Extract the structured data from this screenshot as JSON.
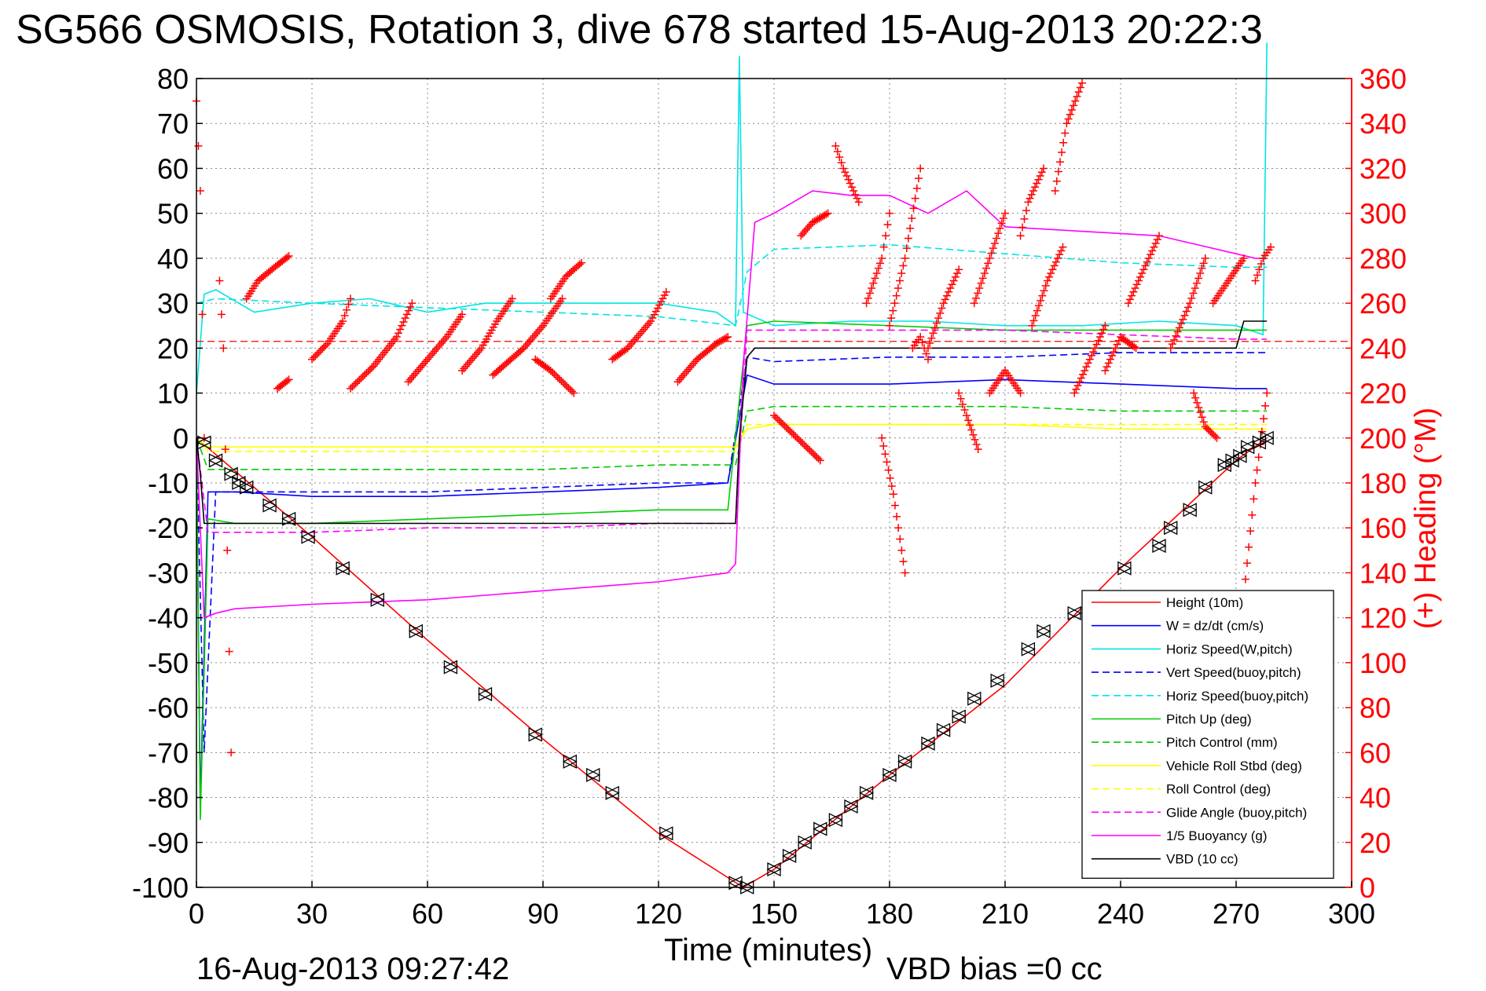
{
  "chart_data": {
    "type": "line",
    "title": "SG566 OSMOSIS, Rotation 3, dive 678 started 15-Aug-2013 20:22:3",
    "xlabel": "Time (minutes)",
    "ylabel": "",
    "y2label": "(+) Heading (°M)",
    "xlim": [
      0,
      300
    ],
    "ylim": [
      -100,
      80
    ],
    "y2lim": [
      0,
      360
    ],
    "xticks": [
      "0",
      "30",
      "60",
      "90",
      "120",
      "150",
      "180",
      "210",
      "240",
      "270",
      "300"
    ],
    "yticks": [
      "80",
      "70",
      "60",
      "50",
      "40",
      "30",
      "20",
      "10",
      "0",
      "-10",
      "-20",
      "-30",
      "-40",
      "-50",
      "-60",
      "-70",
      "-80",
      "-90",
      "-100"
    ],
    "y2ticks": [
      "360",
      "340",
      "320",
      "300",
      "280",
      "260",
      "240",
      "220",
      "200",
      "180",
      "160",
      "140",
      "120",
      "100",
      "80",
      "60",
      "40",
      "20",
      "0"
    ],
    "grid": true,
    "legend_position": "bottom-right",
    "annotation_date": "16-Aug-2013 09:27:42",
    "annotation_bias": "VBD bias =0 cc",
    "series": [
      {
        "name": "Height (10m)",
        "color": "#ff0000",
        "style": "solid",
        "x": [
          0,
          30,
          60,
          90,
          120,
          142,
          150,
          180,
          210,
          240,
          270,
          278
        ],
        "y": [
          0,
          -22,
          -45,
          -67,
          -88,
          -100,
          -96,
          -75,
          -55,
          -29,
          -5,
          0
        ]
      },
      {
        "name": "W = dz/dt (cm/s)",
        "color": "#0000ff",
        "style": "solid",
        "x": [
          0,
          1,
          3,
          10,
          30,
          60,
          90,
          120,
          138,
          143,
          150,
          180,
          210,
          240,
          270,
          278
        ],
        "y": [
          0,
          -82,
          -12,
          -12,
          -13,
          -13,
          -12,
          -11,
          -10,
          14,
          12,
          12,
          13,
          12,
          11,
          11
        ]
      },
      {
        "name": "Horiz Speed(W,pitch)",
        "color": "#00e5e5",
        "style": "solid",
        "x": [
          0,
          2,
          5,
          15,
          30,
          45,
          60,
          75,
          90,
          105,
          120,
          135,
          140,
          141,
          142,
          150,
          170,
          190,
          210,
          230,
          250,
          270,
          277,
          278
        ],
        "y": [
          10,
          32,
          33,
          28,
          30,
          31,
          28,
          30,
          30,
          30,
          30,
          28,
          25,
          85,
          28,
          25,
          26,
          26,
          25,
          25,
          26,
          25,
          23,
          88
        ]
      },
      {
        "name": "Vert Speed(buoy,pitch)",
        "color": "#0000ff",
        "style": "dashed",
        "x": [
          0,
          2,
          5,
          30,
          60,
          90,
          120,
          138,
          143,
          150,
          180,
          210,
          240,
          278
        ],
        "y": [
          0,
          -70,
          -12,
          -12,
          -12,
          -11,
          -10,
          -10,
          18,
          17,
          18,
          18,
          19,
          19
        ]
      },
      {
        "name": "Horiz Speed(buoy,pitch)",
        "color": "#00e5e5",
        "style": "dashed",
        "x": [
          0,
          5,
          30,
          60,
          90,
          120,
          140,
          143,
          150,
          180,
          210,
          240,
          270,
          278
        ],
        "y": [
          30,
          31,
          30,
          29,
          28,
          27,
          25,
          37,
          42,
          43,
          41,
          39,
          38,
          38
        ]
      },
      {
        "name": "Pitch Up (deg)",
        "color": "#00cc00",
        "style": "solid",
        "x": [
          0,
          1,
          3,
          10,
          30,
          60,
          90,
          120,
          138,
          143,
          150,
          180,
          210,
          240,
          270,
          278
        ],
        "y": [
          0,
          -85,
          -18,
          -19,
          -19,
          -18,
          -17,
          -16,
          -16,
          25,
          26,
          25,
          24,
          24,
          24,
          24
        ]
      },
      {
        "name": "Pitch Control (mm)",
        "color": "#00cc00",
        "style": "dashed",
        "x": [
          0,
          3,
          30,
          60,
          90,
          120,
          140,
          143,
          150,
          180,
          210,
          240,
          270,
          278
        ],
        "y": [
          0,
          -7,
          -7,
          -7,
          -7,
          -6,
          -6,
          6,
          7,
          7,
          7,
          6,
          6,
          6
        ]
      },
      {
        "name": "Vehicle Roll Stbd (deg)",
        "color": "#ffff00",
        "style": "solid",
        "x": [
          0,
          3,
          30,
          60,
          90,
          120,
          140,
          143,
          150,
          180,
          210,
          240,
          270,
          278
        ],
        "y": [
          0,
          -2,
          -2,
          -2,
          -2,
          -2,
          -2,
          2,
          3,
          3,
          3,
          2,
          2,
          2
        ]
      },
      {
        "name": "Roll Control (deg)",
        "color": "#ffff00",
        "style": "dashed",
        "x": [
          0,
          3,
          30,
          60,
          90,
          120,
          140,
          143,
          150,
          180,
          210,
          240,
          270,
          278
        ],
        "y": [
          0,
          -3,
          -3,
          -3,
          -3,
          -3,
          -3,
          3,
          3,
          3,
          3,
          3,
          3,
          3
        ]
      },
      {
        "name": "Glide Angle (buoy,pitch)",
        "color": "#ff00ff",
        "style": "dashed",
        "x": [
          0,
          3,
          30,
          60,
          90,
          120,
          140,
          143,
          150,
          180,
          210,
          240,
          270,
          278
        ],
        "y": [
          0,
          -21,
          -21,
          -20,
          -20,
          -19,
          -19,
          24,
          24,
          24,
          24,
          23,
          22,
          22
        ]
      },
      {
        "name": "1/5 Buoyancy (g)",
        "color": "#ff00ff",
        "style": "solid",
        "x": [
          0,
          2,
          5,
          10,
          30,
          60,
          90,
          120,
          138,
          140,
          142,
          145,
          150,
          160,
          170,
          180,
          190,
          200,
          210,
          230,
          250,
          270,
          275,
          278
        ],
        "y": [
          0,
          -40,
          -39,
          -38,
          -37,
          -36,
          -34,
          -32,
          -30,
          -28,
          16,
          48,
          50,
          55,
          54,
          54,
          50,
          55,
          47,
          46,
          45,
          41,
          40,
          40
        ]
      },
      {
        "name": "VBD (10 cc)",
        "color": "#000000",
        "style": "solid",
        "x": [
          0,
          1,
          2,
          30,
          60,
          90,
          120,
          140,
          141,
          143,
          145,
          150,
          180,
          210,
          240,
          270,
          272,
          278
        ],
        "y": [
          0,
          -8,
          -19,
          -19,
          -19,
          -19,
          -19,
          -19,
          0,
          18,
          20,
          20,
          20,
          20,
          20,
          20,
          26,
          26
        ]
      }
    ],
    "heading": {
      "name": "(+) Heading (°M)",
      "color": "#ff0000",
      "marker": "+",
      "axis": "right",
      "segments": [
        {
          "x": [
            0,
            1,
            2
          ],
          "y": [
            350,
            310,
            200
          ]
        },
        {
          "x": [
            6,
            7,
            8,
            9
          ],
          "y": [
            270,
            240,
            150,
            60
          ]
        },
        {
          "x": [
            13,
            16,
            21,
            24
          ],
          "y": [
            262,
            270,
            277,
            281
          ]
        },
        {
          "x": [
            21,
            24
          ],
          "y": [
            222,
            226
          ]
        },
        {
          "x": [
            30,
            34,
            38,
            40
          ],
          "y": [
            235,
            242,
            252,
            262
          ]
        },
        {
          "x": [
            40,
            46,
            52,
            56
          ],
          "y": [
            222,
            232,
            245,
            260
          ]
        },
        {
          "x": [
            55,
            60,
            65,
            69
          ],
          "y": [
            225,
            235,
            245,
            255
          ]
        },
        {
          "x": [
            69,
            74,
            78,
            82
          ],
          "y": [
            230,
            240,
            252,
            262
          ]
        },
        {
          "x": [
            77,
            85,
            90,
            95
          ],
          "y": [
            228,
            240,
            250,
            262
          ]
        },
        {
          "x": [
            92,
            96,
            100
          ],
          "y": [
            262,
            272,
            278
          ]
        },
        {
          "x": [
            88,
            92,
            98
          ],
          "y": [
            235,
            230,
            220
          ]
        },
        {
          "x": [
            108,
            112,
            118,
            122
          ],
          "y": [
            235,
            240,
            252,
            265
          ]
        },
        {
          "x": [
            125,
            130,
            135,
            138
          ],
          "y": [
            225,
            235,
            242,
            245
          ]
        },
        {
          "x": [
            150,
            156,
            162
          ],
          "y": [
            210,
            200,
            190
          ]
        },
        {
          "x": [
            157,
            160,
            164
          ],
          "y": [
            290,
            296,
            300
          ]
        },
        {
          "x": [
            166,
            168,
            172
          ],
          "y": [
            330,
            320,
            305
          ]
        },
        {
          "x": [
            174,
            178,
            180
          ],
          "y": [
            260,
            280,
            300
          ]
        },
        {
          "x": [
            178,
            181,
            184
          ],
          "y": [
            200,
            175,
            140
          ]
        },
        {
          "x": [
            180,
            184,
            188
          ],
          "y": [
            250,
            280,
            320
          ]
        },
        {
          "x": [
            186,
            188,
            190
          ],
          "y": [
            240,
            245,
            235
          ]
        },
        {
          "x": [
            190,
            194,
            198
          ],
          "y": [
            240,
            260,
            275
          ]
        },
        {
          "x": [
            198,
            200,
            203
          ],
          "y": [
            220,
            210,
            195
          ]
        },
        {
          "x": [
            202,
            206,
            210
          ],
          "y": [
            260,
            280,
            300
          ]
        },
        {
          "x": [
            206,
            210,
            214
          ],
          "y": [
            220,
            230,
            220
          ]
        },
        {
          "x": [
            214,
            216,
            220
          ],
          "y": [
            290,
            305,
            320
          ]
        },
        {
          "x": [
            217,
            221,
            225
          ],
          "y": [
            250,
            270,
            285
          ]
        },
        {
          "x": [
            223,
            226,
            230
          ],
          "y": [
            310,
            340,
            358
          ]
        },
        {
          "x": [
            228,
            232,
            236
          ],
          "y": [
            220,
            235,
            250
          ]
        },
        {
          "x": [
            236,
            240,
            244
          ],
          "y": [
            230,
            245,
            240
          ]
        },
        {
          "x": [
            242,
            246,
            250
          ],
          "y": [
            260,
            275,
            290
          ]
        },
        {
          "x": [
            253,
            258,
            262
          ],
          "y": [
            240,
            260,
            280
          ]
        },
        {
          "x": [
            259,
            262,
            265
          ],
          "y": [
            220,
            205,
            200
          ]
        },
        {
          "x": [
            264,
            268,
            272
          ],
          "y": [
            260,
            270,
            280
          ]
        },
        {
          "x": [
            272,
            275,
            278
          ],
          "y": [
            130,
            180,
            220
          ]
        },
        {
          "x": [
            275,
            277,
            279
          ],
          "y": [
            270,
            280,
            285
          ]
        }
      ],
      "reference": {
        "y": 243,
        "style": "dashed"
      }
    },
    "vbd_markers": {
      "marker": "triangle",
      "color": "#000000",
      "x": [
        2,
        5,
        9,
        11,
        13,
        19,
        24,
        29,
        38,
        47,
        57,
        66,
        75,
        88,
        97,
        103,
        108,
        122,
        140,
        143,
        150,
        154,
        158,
        162,
        166,
        170,
        174,
        180,
        184,
        190,
        194,
        198,
        202,
        208,
        216,
        220,
        228,
        241,
        250,
        253,
        258,
        262,
        267,
        269,
        271,
        273,
        276,
        278
      ],
      "y": [
        -1,
        -5,
        -8,
        -10,
        -11,
        -15,
        -18,
        -22,
        -29,
        -36,
        -43,
        -51,
        -57,
        -66,
        -72,
        -75,
        -79,
        -88,
        -99,
        -100,
        -96,
        -93,
        -90,
        -87,
        -85,
        -82,
        -79,
        -75,
        -72,
        -68,
        -65,
        -62,
        -58,
        -54,
        -47,
        -43,
        -39,
        -29,
        -24,
        -20,
        -16,
        -11,
        -6,
        -5,
        -4,
        -2,
        -1,
        0
      ]
    }
  }
}
